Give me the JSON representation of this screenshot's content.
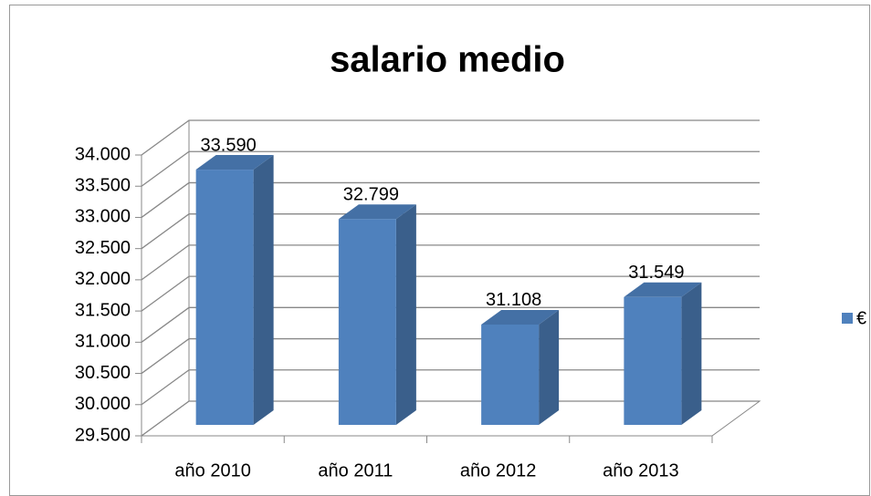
{
  "chart_data": {
    "type": "bar3d",
    "title": "salario medio",
    "categories": [
      "año 2010",
      "año 2011",
      "año 2012",
      "año 2013"
    ],
    "series": [
      {
        "name": "€",
        "color": "#4f81bd",
        "values": [
          33590,
          32799,
          31108,
          31549
        ],
        "value_labels": [
          "33.590",
          "32.799",
          "31.108",
          "31.549"
        ]
      }
    ],
    "ylim": [
      29500,
      34000
    ],
    "yticks": [
      {
        "value": 29500,
        "label": "29.500"
      },
      {
        "value": 30000,
        "label": "30.000"
      },
      {
        "value": 30500,
        "label": "30.500"
      },
      {
        "value": 31000,
        "label": "31.000"
      },
      {
        "value": 31500,
        "label": "31.500"
      },
      {
        "value": 32000,
        "label": "32.000"
      },
      {
        "value": 32500,
        "label": "32.500"
      },
      {
        "value": 33000,
        "label": "33.000"
      },
      {
        "value": 33500,
        "label": "33.500"
      },
      {
        "value": 34000,
        "label": "34.000"
      }
    ],
    "grid": true,
    "legend": "right"
  }
}
